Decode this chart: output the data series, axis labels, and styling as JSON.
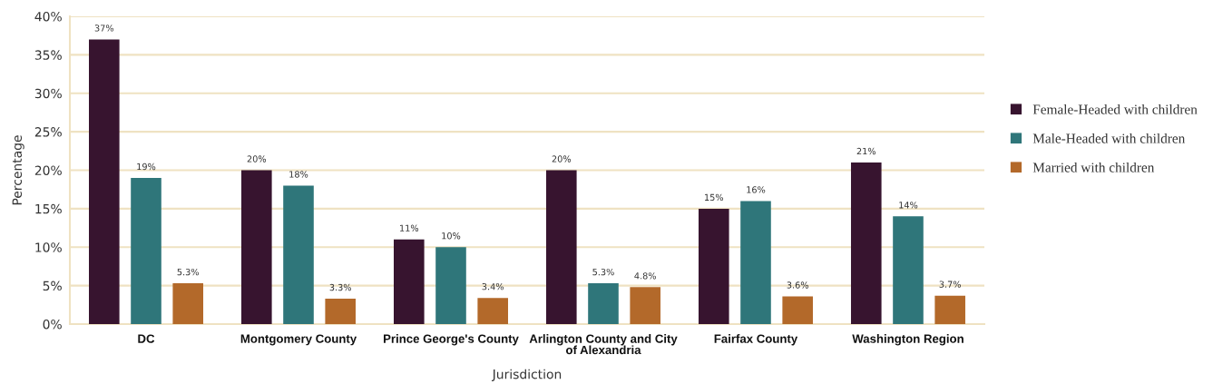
{
  "chart_data": {
    "type": "bar",
    "xlabel": "Jurisdiction",
    "ylabel": "Percentage",
    "categories": [
      "DC",
      "Montgomery County",
      "Prince George's County",
      "Arlington County and City of Alexandria",
      "Fairfax County",
      "Washington Region"
    ],
    "series": [
      {
        "name": "Female-Headed with children",
        "color": "#37142f",
        "values": [
          37,
          20,
          11,
          20,
          15,
          21
        ],
        "value_labels": [
          "37%",
          "20%",
          "11%",
          "20%",
          "15%",
          "21%"
        ]
      },
      {
        "name": "Male-Headed with children",
        "color": "#2f767a",
        "values": [
          19,
          18,
          10,
          5.3,
          16,
          14
        ],
        "value_labels": [
          "19%",
          "18%",
          "10%",
          "5.3%",
          "16%",
          "14%"
        ]
      },
      {
        "name": "Married with children",
        "color": "#b3692a",
        "values": [
          5.3,
          3.3,
          3.4,
          4.8,
          3.6,
          3.7
        ],
        "value_labels": [
          "5.3%",
          "3.3%",
          "3.4%",
          "4.8%",
          "3.6%",
          "3.7%"
        ]
      }
    ],
    "ylim": [
      0,
      40
    ],
    "yticks": [
      {
        "value": 0,
        "label": "0%"
      },
      {
        "value": 5,
        "label": "5%"
      },
      {
        "value": 10,
        "label": "10%"
      },
      {
        "value": 15,
        "label": "15%"
      },
      {
        "value": 20,
        "label": "20%"
      },
      {
        "value": 25,
        "label": "25%"
      },
      {
        "value": 30,
        "label": "30%"
      },
      {
        "value": 35,
        "label": "35%"
      },
      {
        "value": 40,
        "label": "40%"
      }
    ],
    "grid": "y",
    "legend": "right"
  }
}
